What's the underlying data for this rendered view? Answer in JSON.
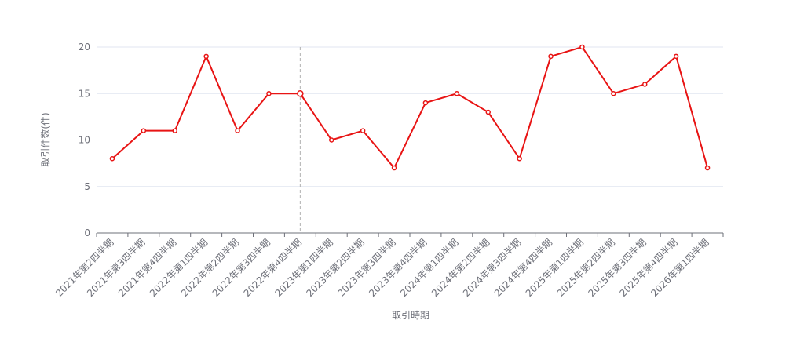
{
  "chart_data": {
    "type": "line",
    "x_label": "取引時期",
    "y_label": "取引件数(件)",
    "categories": [
      "2021年第2四半期",
      "2021年第3四半期",
      "2021年第4四半期",
      "2022年第1四半期",
      "2022年第2四半期",
      "2022年第3四半期",
      "2022年第4四半期",
      "2023年第1四半期",
      "2023年第2四半期",
      "2023年第3四半期",
      "2023年第4四半期",
      "2024年第1四半期",
      "2024年第2四半期",
      "2024年第3四半期",
      "2024年第4四半期",
      "2025年第1四半期",
      "2025年第2四半期",
      "2025年第3四半期",
      "2025年第4四半期",
      "2026年第1四半期"
    ],
    "series": [
      {
        "name": "取引件数",
        "color": "#e81414",
        "values": [
          8,
          11,
          11,
          19,
          11,
          15,
          15,
          10,
          11,
          7,
          14,
          15,
          13,
          8,
          19,
          20,
          15,
          16,
          19,
          7
        ]
      }
    ],
    "ylim": [
      0,
      20
    ],
    "yticks": [
      0,
      5,
      10,
      15,
      20
    ],
    "grid": true
  }
}
